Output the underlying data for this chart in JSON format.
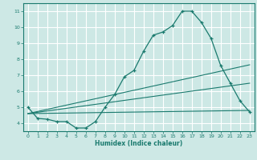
{
  "xlabel": "Humidex (Indice chaleur)",
  "bg_color": "#cde8e5",
  "grid_color": "#ffffff",
  "line_color": "#1a7a6e",
  "xlim": [
    -0.5,
    23.5
  ],
  "ylim": [
    3.5,
    11.5
  ],
  "xticks": [
    0,
    1,
    2,
    3,
    4,
    5,
    6,
    7,
    8,
    9,
    10,
    11,
    12,
    13,
    14,
    15,
    16,
    17,
    18,
    19,
    20,
    21,
    22,
    23
  ],
  "yticks": [
    4,
    5,
    6,
    7,
    8,
    9,
    10,
    11
  ],
  "line1_x": [
    0,
    1,
    2,
    3,
    4,
    5,
    6,
    7,
    8,
    9,
    10,
    11,
    12,
    13,
    14,
    15,
    16,
    17,
    18,
    19,
    20,
    21,
    22,
    23
  ],
  "line1_y": [
    5.0,
    4.3,
    4.25,
    4.1,
    4.1,
    3.7,
    3.7,
    4.1,
    5.0,
    5.8,
    6.9,
    7.3,
    8.5,
    9.5,
    9.7,
    10.1,
    11.0,
    11.0,
    10.3,
    9.3,
    7.6,
    6.5,
    5.4,
    4.7
  ],
  "line2_x": [
    0,
    23
  ],
  "line2_y": [
    4.6,
    4.8
  ],
  "line3_x": [
    0,
    23
  ],
  "line3_y": [
    4.6,
    6.5
  ],
  "line4_x": [
    0,
    23
  ],
  "line4_y": [
    4.6,
    7.65
  ]
}
